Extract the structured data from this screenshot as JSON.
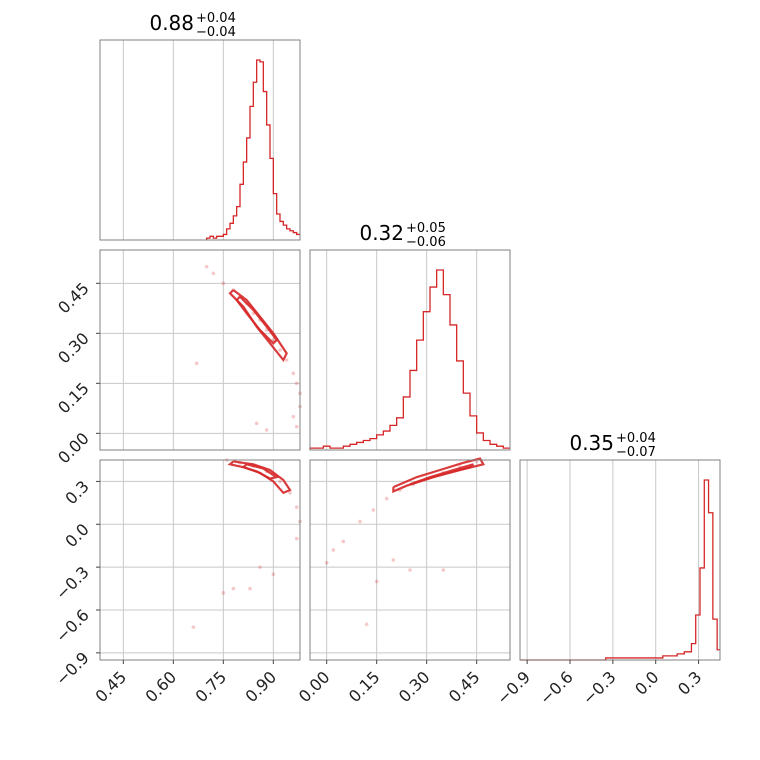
{
  "chart_data": {
    "type": "corner",
    "color": "#d62728",
    "parameters": [
      {
        "title_value": "0.88",
        "title_plus": "+0.04",
        "title_minus": "−0.04",
        "range": [
          0.38,
          0.98
        ],
        "ticks": [
          0.45,
          0.6,
          0.75,
          0.9
        ],
        "tick_labels": [
          "0.45",
          "0.60",
          "0.75",
          "0.90"
        ],
        "histogram": {
          "bins": [
            0.7,
            0.71,
            0.72,
            0.73,
            0.74,
            0.75,
            0.76,
            0.77,
            0.78,
            0.79,
            0.8,
            0.81,
            0.82,
            0.83,
            0.84,
            0.85,
            0.86,
            0.87,
            0.88,
            0.89,
            0.9,
            0.91,
            0.92,
            0.93,
            0.94,
            0.95,
            0.96,
            0.97,
            0.98
          ],
          "counts": [
            0.01,
            0.02,
            0.01,
            0.02,
            0.02,
            0.03,
            0.06,
            0.09,
            0.13,
            0.18,
            0.3,
            0.42,
            0.55,
            0.72,
            0.85,
            0.97,
            0.96,
            0.8,
            0.62,
            0.44,
            0.25,
            0.14,
            0.1,
            0.08,
            0.06,
            0.05,
            0.04,
            0.03
          ]
        }
      },
      {
        "title_value": "0.32",
        "title_plus": "+0.05",
        "title_minus": "−0.06",
        "range": [
          -0.05,
          0.55
        ],
        "ticks": [
          0.0,
          0.15,
          0.3,
          0.45
        ],
        "tick_labels": [
          "0.00",
          "0.15",
          "0.30",
          "0.45"
        ],
        "histogram": {
          "bins": [
            -0.05,
            -0.03,
            -0.01,
            0.01,
            0.03,
            0.05,
            0.07,
            0.09,
            0.11,
            0.13,
            0.15,
            0.17,
            0.19,
            0.21,
            0.23,
            0.25,
            0.27,
            0.29,
            0.31,
            0.33,
            0.35,
            0.37,
            0.39,
            0.41,
            0.43,
            0.45,
            0.47,
            0.49,
            0.51,
            0.53,
            0.55
          ],
          "counts": [
            0.01,
            0.01,
            0.02,
            0.01,
            0.01,
            0.02,
            0.03,
            0.04,
            0.05,
            0.06,
            0.08,
            0.1,
            0.13,
            0.17,
            0.28,
            0.42,
            0.58,
            0.73,
            0.86,
            0.95,
            0.82,
            0.66,
            0.47,
            0.3,
            0.18,
            0.09,
            0.05,
            0.03,
            0.02,
            0.01
          ]
        }
      },
      {
        "title_value": "0.35",
        "title_plus": "+0.04",
        "title_minus": "−0.07",
        "range": [
          -0.95,
          0.45
        ],
        "ticks": [
          -0.9,
          -0.6,
          -0.3,
          0.0,
          0.3
        ],
        "tick_labels": [
          "−0.9",
          "−0.6",
          "−0.3",
          "0.0",
          "0.3"
        ],
        "histogram": {
          "bins": [
            -0.95,
            -0.85,
            -0.75,
            -0.65,
            -0.55,
            -0.45,
            -0.35,
            -0.25,
            -0.15,
            -0.05,
            0.0,
            0.05,
            0.1,
            0.15,
            0.2,
            0.25,
            0.28,
            0.31,
            0.34,
            0.37,
            0.4,
            0.43,
            0.45
          ],
          "counts": [
            0.0,
            0.0,
            0.0,
            0.0,
            0.0,
            0.0,
            0.01,
            0.01,
            0.01,
            0.01,
            0.01,
            0.02,
            0.02,
            0.03,
            0.04,
            0.08,
            0.22,
            0.45,
            0.88,
            0.72,
            0.2,
            0.05
          ]
        }
      }
    ],
    "pairs": [
      {
        "row": 1,
        "col": 0,
        "samples": [
          [
            0.72,
            0.48
          ],
          [
            0.75,
            0.45
          ],
          [
            0.78,
            0.43
          ],
          [
            0.8,
            0.41
          ],
          [
            0.82,
            0.39
          ],
          [
            0.84,
            0.36
          ],
          [
            0.86,
            0.34
          ],
          [
            0.88,
            0.31
          ],
          [
            0.9,
            0.28
          ],
          [
            0.92,
            0.25
          ],
          [
            0.94,
            0.22
          ],
          [
            0.96,
            0.18
          ],
          [
            0.97,
            0.15
          ],
          [
            0.98,
            0.12
          ],
          [
            0.98,
            0.08
          ],
          [
            0.97,
            0.02
          ],
          [
            0.96,
            0.05
          ],
          [
            0.67,
            0.21
          ],
          [
            0.85,
            0.03
          ],
          [
            0.88,
            0.01
          ],
          [
            0.7,
            0.5
          ]
        ],
        "contours": [
          [
            [
              0.78,
              0.43
            ],
            [
              0.82,
              0.4
            ],
            [
              0.86,
              0.35
            ],
            [
              0.9,
              0.3
            ],
            [
              0.94,
              0.24
            ],
            [
              0.93,
              0.22
            ],
            [
              0.89,
              0.27
            ],
            [
              0.85,
              0.32
            ],
            [
              0.81,
              0.38
            ],
            [
              0.77,
              0.42
            ],
            [
              0.78,
              0.43
            ]
          ],
          [
            [
              0.8,
              0.41
            ],
            [
              0.84,
              0.37
            ],
            [
              0.88,
              0.32
            ],
            [
              0.91,
              0.28
            ],
            [
              0.9,
              0.27
            ],
            [
              0.86,
              0.31
            ],
            [
              0.82,
              0.36
            ],
            [
              0.79,
              0.4
            ],
            [
              0.8,
              0.41
            ]
          ]
        ]
      },
      {
        "row": 2,
        "col": 0,
        "samples": [
          [
            0.72,
            0.47
          ],
          [
            0.76,
            0.45
          ],
          [
            0.8,
            0.43
          ],
          [
            0.84,
            0.41
          ],
          [
            0.88,
            0.37
          ],
          [
            0.92,
            0.3
          ],
          [
            0.95,
            0.22
          ],
          [
            0.97,
            0.12
          ],
          [
            0.98,
            0.02
          ],
          [
            0.97,
            -0.1
          ],
          [
            0.86,
            -0.3
          ],
          [
            0.83,
            -0.45
          ],
          [
            0.78,
            -0.45
          ],
          [
            0.75,
            -0.48
          ],
          [
            0.66,
            -0.72
          ],
          [
            0.9,
            -0.35
          ]
        ],
        "contours": [
          [
            [
              0.78,
              0.44
            ],
            [
              0.84,
              0.42
            ],
            [
              0.89,
              0.38
            ],
            [
              0.93,
              0.31
            ],
            [
              0.95,
              0.24
            ],
            [
              0.93,
              0.22
            ],
            [
              0.9,
              0.3
            ],
            [
              0.86,
              0.36
            ],
            [
              0.81,
              0.4
            ],
            [
              0.77,
              0.42
            ],
            [
              0.78,
              0.44
            ]
          ],
          [
            [
              0.82,
              0.42
            ],
            [
              0.87,
              0.39
            ],
            [
              0.91,
              0.33
            ],
            [
              0.89,
              0.32
            ],
            [
              0.85,
              0.37
            ],
            [
              0.81,
              0.4
            ],
            [
              0.82,
              0.42
            ]
          ]
        ]
      },
      {
        "row": 2,
        "col": 1,
        "samples": [
          [
            0.05,
            -0.12
          ],
          [
            0.02,
            -0.18
          ],
          [
            0.1,
            0.02
          ],
          [
            0.14,
            0.1
          ],
          [
            0.18,
            0.18
          ],
          [
            0.22,
            0.24
          ],
          [
            0.26,
            0.28
          ],
          [
            0.3,
            0.32
          ],
          [
            0.35,
            0.36
          ],
          [
            0.4,
            0.4
          ],
          [
            0.45,
            0.44
          ],
          [
            0.5,
            0.47
          ],
          [
            0.0,
            -0.27
          ],
          [
            0.2,
            -0.25
          ],
          [
            0.15,
            -0.4
          ],
          [
            0.12,
            -0.7
          ],
          [
            0.25,
            -0.32
          ],
          [
            0.35,
            -0.32
          ]
        ],
        "contours": [
          [
            [
              0.2,
              0.26
            ],
            [
              0.27,
              0.33
            ],
            [
              0.34,
              0.38
            ],
            [
              0.41,
              0.43
            ],
            [
              0.46,
              0.46
            ],
            [
              0.47,
              0.42
            ],
            [
              0.4,
              0.38
            ],
            [
              0.32,
              0.33
            ],
            [
              0.24,
              0.27
            ],
            [
              0.2,
              0.23
            ],
            [
              0.2,
              0.26
            ]
          ],
          [
            [
              0.25,
              0.28
            ],
            [
              0.31,
              0.33
            ],
            [
              0.38,
              0.38
            ],
            [
              0.44,
              0.42
            ],
            [
              0.43,
              0.4
            ],
            [
              0.36,
              0.36
            ],
            [
              0.29,
              0.31
            ],
            [
              0.25,
              0.28
            ]
          ]
        ]
      }
    ]
  }
}
